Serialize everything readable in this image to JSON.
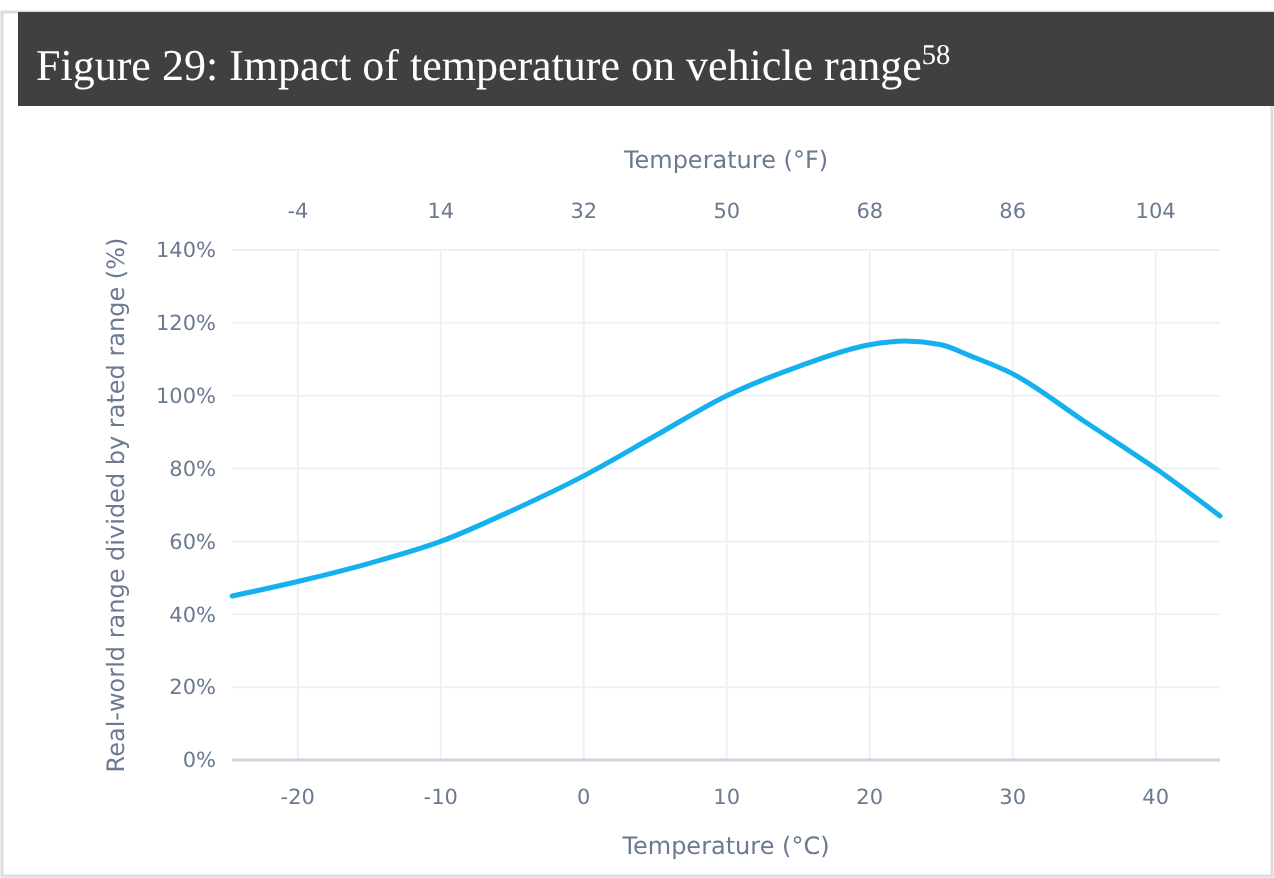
{
  "chart_data": {
    "type": "line",
    "title": "Figure 29: Impact of temperature on vehicle range$^{58}$",
    "xlabel": "Temperature (°C)",
    "x2label": "Temperature (°F)",
    "ylabel": "Real-world range divided by rated range (%)",
    "x": [
      -24.6,
      -20,
      -15,
      -10,
      -5,
      0,
      5,
      10,
      15,
      20,
      22.5,
      25,
      27,
      30,
      35,
      40,
      44.5
    ],
    "series": [
      {
        "color": "#14b1ee",
        "values": [
          45,
          49,
          54,
          60,
          68.5,
          78,
          89,
          100,
          108,
          114,
          115,
          114,
          111,
          106,
          93,
          80,
          67
        ]
      }
    ],
    "xlim": [
      -24.6,
      44.5
    ],
    "xticks": [
      -20,
      -10,
      0,
      10,
      20,
      30,
      40
    ],
    "x2lim": [
      -12.3,
      112.1
    ],
    "x2ticks": [
      -4,
      14,
      32,
      50,
      68,
      86,
      104
    ],
    "ylim": [
      0,
      140
    ],
    "yticks": [
      {
        "value": 0,
        "label": "0%"
      },
      {
        "value": 20,
        "label": "20%"
      },
      {
        "value": 40,
        "label": "40%"
      },
      {
        "value": 60,
        "label": "60%"
      },
      {
        "value": 80,
        "label": "80%"
      },
      {
        "value": 100,
        "label": "100%"
      },
      {
        "value": 120,
        "label": "120%"
      },
      {
        "value": 140,
        "label": "140%"
      }
    ],
    "grid": true,
    "marker": "none",
    "line_style": "solid"
  }
}
